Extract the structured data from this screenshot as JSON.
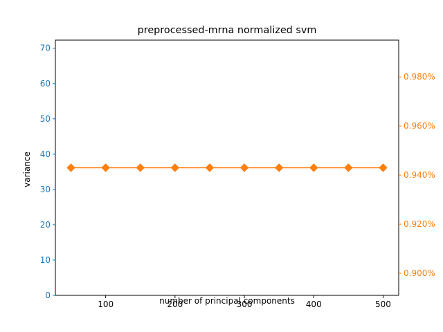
{
  "chart_data": {
    "type": "line",
    "title": "preprocessed-mrna normalized svm",
    "xlabel": "number of principal components",
    "ylabel_left": "variance",
    "ylabel_right": "",
    "xlim": [
      27.5,
      522.5
    ],
    "ylim_left": [
      0,
      72.3
    ],
    "ylim_right": [
      0.891,
      0.995
    ],
    "x_ticks": [
      100,
      200,
      300,
      400,
      500
    ],
    "x_tick_labels": [
      "100",
      "200",
      "300",
      "400",
      "500"
    ],
    "y_left_ticks": [
      0,
      10,
      20,
      30,
      40,
      50,
      60,
      70
    ],
    "y_left_tick_labels": [
      "0",
      "10",
      "20",
      "30",
      "40",
      "50",
      "60",
      "70"
    ],
    "y_right_ticks": [
      0.9,
      0.92,
      0.94,
      0.96,
      0.98
    ],
    "y_right_tick_labels": [
      "0.900%",
      "0.920%",
      "0.940%",
      "0.960%",
      "0.980%"
    ],
    "grid": false,
    "legend": "none",
    "colors": {
      "left_axis": "#1f77b4",
      "right_axis": "#ff7f0e",
      "series": "#ff7f0e"
    },
    "series": [
      {
        "axis": "right",
        "marker": "diamond",
        "x": [
          50,
          100,
          150,
          200,
          250,
          300,
          350,
          400,
          450,
          500
        ],
        "values": [
          0.943,
          0.943,
          0.943,
          0.943,
          0.943,
          0.943,
          0.943,
          0.943,
          0.943,
          0.943
        ]
      }
    ]
  }
}
